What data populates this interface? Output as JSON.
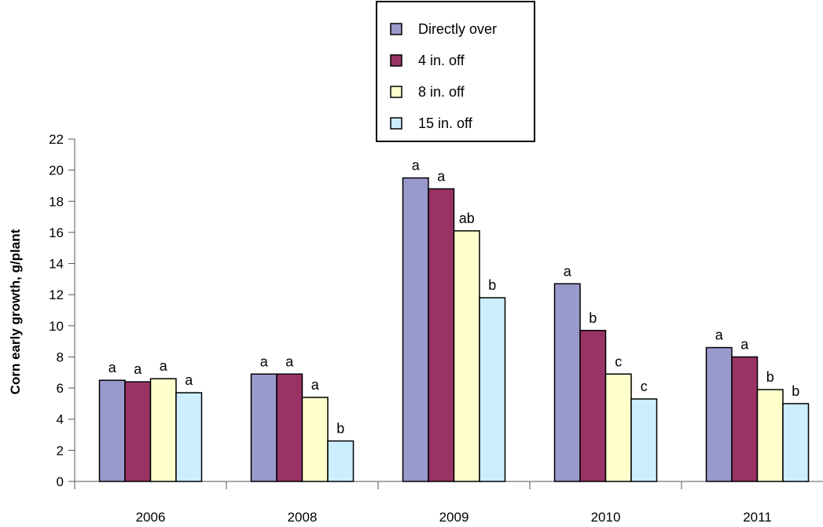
{
  "chart_data": {
    "type": "bar",
    "ylabel": "Corn early growth, g/plant",
    "ylim": [
      0,
      22
    ],
    "yticks": [
      0,
      2,
      4,
      6,
      8,
      10,
      12,
      14,
      16,
      18,
      20,
      22
    ],
    "categories": [
      "2006",
      "2008",
      "2009",
      "2010",
      "2011"
    ],
    "grid": false,
    "legend_position": "top-center",
    "series": [
      {
        "name": "Directly over",
        "color": "#9999cc",
        "values": [
          6.5,
          6.9,
          19.5,
          12.7,
          8.6
        ],
        "labels": [
          "a",
          "a",
          "a",
          "a",
          "a"
        ]
      },
      {
        "name": "4 in. off",
        "color": "#993366",
        "values": [
          6.4,
          6.9,
          18.8,
          9.7,
          8.0
        ],
        "labels": [
          "a",
          "a",
          "a",
          "b",
          "a"
        ]
      },
      {
        "name": "8 in. off",
        "color": "#ffffcc",
        "values": [
          6.6,
          5.4,
          16.1,
          6.9,
          5.9
        ],
        "labels": [
          "a",
          "a",
          "ab",
          "c",
          "b"
        ]
      },
      {
        "name": "15 in. off",
        "color": "#cceeff",
        "values": [
          5.7,
          2.6,
          11.8,
          5.3,
          5.0
        ],
        "labels": [
          "a",
          "b",
          "b",
          "c",
          "b"
        ]
      }
    ]
  }
}
